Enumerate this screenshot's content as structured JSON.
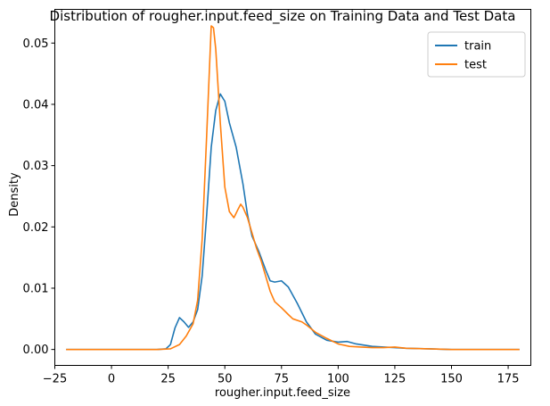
{
  "chart_data": {
    "type": "line",
    "title": "Distribution of rougher.input.feed_size on Training Data and Test Data",
    "xlabel": "rougher.input.feed_size",
    "ylabel": "Density",
    "xlim": [
      -25,
      185
    ],
    "ylim": [
      -0.0026,
      0.0555
    ],
    "x_ticks": [
      -25,
      0,
      25,
      50,
      75,
      100,
      125,
      150,
      175
    ],
    "x_tick_labels": [
      "−25",
      "0",
      "25",
      "50",
      "75",
      "100",
      "125",
      "150",
      "175"
    ],
    "y_ticks": [
      0.0,
      0.01,
      0.02,
      0.03,
      0.04,
      0.05
    ],
    "y_tick_labels": [
      "0.00",
      "0.01",
      "0.02",
      "0.03",
      "0.04",
      "0.05"
    ],
    "grid": false,
    "legend_position": "top-right",
    "series": [
      {
        "name": "train",
        "color": "#1f77b4",
        "points": [
          [
            -20,
            0
          ],
          [
            0,
            0
          ],
          [
            20,
            0
          ],
          [
            24,
            0.0001
          ],
          [
            26,
            0.0008
          ],
          [
            28,
            0.0035
          ],
          [
            30,
            0.0052
          ],
          [
            32,
            0.0045
          ],
          [
            34,
            0.0036
          ],
          [
            36,
            0.0045
          ],
          [
            38,
            0.0065
          ],
          [
            40,
            0.012
          ],
          [
            42,
            0.022
          ],
          [
            44,
            0.033
          ],
          [
            46,
            0.039
          ],
          [
            48,
            0.0417
          ],
          [
            50,
            0.0405
          ],
          [
            52,
            0.037
          ],
          [
            55,
            0.033
          ],
          [
            58,
            0.027
          ],
          [
            60,
            0.022
          ],
          [
            62,
            0.0185
          ],
          [
            65,
            0.016
          ],
          [
            68,
            0.013
          ],
          [
            70,
            0.0112
          ],
          [
            72,
            0.011
          ],
          [
            75,
            0.0112
          ],
          [
            78,
            0.0102
          ],
          [
            82,
            0.0075
          ],
          [
            86,
            0.0045
          ],
          [
            90,
            0.0025
          ],
          [
            95,
            0.0015
          ],
          [
            100,
            0.0012
          ],
          [
            104,
            0.0013
          ],
          [
            108,
            0.0009
          ],
          [
            115,
            0.0005
          ],
          [
            120,
            0.0004
          ],
          [
            125,
            0.0003
          ],
          [
            130,
            0.0002
          ],
          [
            140,
            0.0001
          ],
          [
            150,
            0
          ],
          [
            180,
            0
          ]
        ]
      },
      {
        "name": "test",
        "color": "#ff7f0e",
        "points": [
          [
            -20,
            0
          ],
          [
            0,
            0
          ],
          [
            20,
            0
          ],
          [
            26,
            0.0001
          ],
          [
            30,
            0.0008
          ],
          [
            33,
            0.0022
          ],
          [
            36,
            0.0042
          ],
          [
            38,
            0.008
          ],
          [
            40,
            0.018
          ],
          [
            42,
            0.035
          ],
          [
            44,
            0.0528
          ],
          [
            45,
            0.0525
          ],
          [
            46,
            0.049
          ],
          [
            48,
            0.037
          ],
          [
            50,
            0.0265
          ],
          [
            52,
            0.0225
          ],
          [
            54,
            0.0215
          ],
          [
            56,
            0.023
          ],
          [
            57,
            0.0237
          ],
          [
            58,
            0.0232
          ],
          [
            60,
            0.0215
          ],
          [
            62,
            0.019
          ],
          [
            64,
            0.0165
          ],
          [
            66,
            0.0145
          ],
          [
            68,
            0.012
          ],
          [
            70,
            0.0095
          ],
          [
            72,
            0.0078
          ],
          [
            75,
            0.0068
          ],
          [
            78,
            0.0057
          ],
          [
            80,
            0.005
          ],
          [
            84,
            0.0045
          ],
          [
            86,
            0.004
          ],
          [
            90,
            0.0028
          ],
          [
            95,
            0.0018
          ],
          [
            100,
            0.0009
          ],
          [
            105,
            0.0005
          ],
          [
            110,
            0.0004
          ],
          [
            115,
            0.0003
          ],
          [
            120,
            0.0003
          ],
          [
            125,
            0.0004
          ],
          [
            130,
            0.0002
          ],
          [
            140,
            0.0001
          ],
          [
            150,
            0
          ],
          [
            180,
            0
          ]
        ]
      }
    ]
  }
}
